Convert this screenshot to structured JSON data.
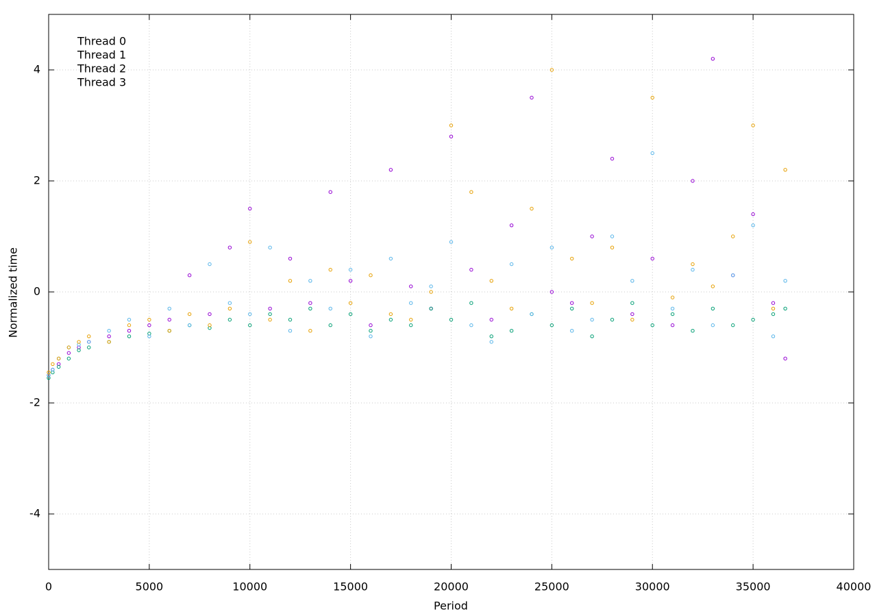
{
  "chart_data": {
    "type": "scatter",
    "xlabel": "Period",
    "ylabel": "Normalized time",
    "x": [
      0,
      200,
      500,
      1000,
      1500,
      2000,
      3000,
      4000,
      5000,
      6000,
      7000,
      8000,
      9000,
      10000,
      11000,
      12000,
      13000,
      14000,
      15000,
      16000,
      17000,
      18000,
      19000,
      20000,
      21000,
      22000,
      23000,
      24000,
      25000,
      26000,
      27000,
      28000,
      29000,
      30000,
      31000,
      32000,
      33000,
      34000,
      35000,
      36000,
      36600
    ],
    "series": [
      {
        "name": "Thread 0",
        "color": "#9400d3",
        "values": [
          -1.5,
          -1.4,
          -1.3,
          -1.1,
          -1.0,
          -0.9,
          -0.8,
          -0.7,
          -0.6,
          -0.5,
          0.3,
          -0.4,
          0.8,
          1.5,
          -0.3,
          0.6,
          -0.2,
          1.8,
          0.2,
          -0.6,
          2.2,
          0.1,
          -0.3,
          2.8,
          0.4,
          -0.5,
          1.2,
          3.5,
          0.0,
          -0.2,
          1.0,
          2.4,
          -0.4,
          0.6,
          -0.6,
          2.0,
          4.2,
          0.3,
          1.4,
          -0.2,
          -1.2
        ]
      },
      {
        "name": "Thread 1",
        "color": "#009e73",
        "values": [
          -1.55,
          -1.45,
          -1.35,
          -1.2,
          -1.05,
          -1.0,
          -0.9,
          -0.8,
          -0.75,
          -0.7,
          -0.6,
          -0.65,
          -0.5,
          -0.6,
          -0.4,
          -0.5,
          -0.3,
          -0.6,
          -0.4,
          -0.7,
          -0.5,
          -0.6,
          -0.3,
          -0.5,
          -0.2,
          -0.8,
          -0.7,
          -0.4,
          -0.6,
          -0.3,
          -0.8,
          -0.5,
          -0.2,
          -0.6,
          -0.4,
          -0.7,
          -0.3,
          -0.6,
          -0.5,
          -0.4,
          -0.3
        ]
      },
      {
        "name": "Thread 2",
        "color": "#56b4e9",
        "values": [
          -1.5,
          -1.4,
          -1.2,
          -1.0,
          -0.95,
          -0.9,
          -0.7,
          -0.5,
          -0.8,
          -0.3,
          -0.6,
          0.5,
          -0.2,
          -0.4,
          0.8,
          -0.7,
          0.2,
          -0.3,
          0.4,
          -0.8,
          0.6,
          -0.2,
          0.1,
          0.9,
          -0.6,
          -0.9,
          0.5,
          -0.4,
          0.8,
          -0.7,
          -0.5,
          1.0,
          0.2,
          2.5,
          -0.3,
          0.4,
          -0.6,
          0.3,
          1.2,
          -0.8,
          0.2
        ]
      },
      {
        "name": "Thread 3",
        "color": "#e69f00",
        "values": [
          -1.45,
          -1.3,
          -1.2,
          -1.0,
          -0.9,
          -0.8,
          -0.9,
          -0.6,
          -0.5,
          -0.7,
          -0.4,
          -0.6,
          -0.3,
          0.9,
          -0.5,
          0.2,
          -0.7,
          0.4,
          -0.2,
          0.3,
          -0.4,
          -0.5,
          0.0,
          3.0,
          1.8,
          0.2,
          -0.3,
          1.5,
          4.0,
          0.6,
          -0.2,
          0.8,
          -0.5,
          3.5,
          -0.1,
          0.5,
          0.1,
          1.0,
          3.0,
          -0.3,
          2.2
        ]
      }
    ],
    "xlim": [
      0,
      40000
    ],
    "xticks": [
      0,
      5000,
      10000,
      15000,
      20000,
      25000,
      30000,
      35000,
      40000
    ],
    "ylim": [
      -5,
      5
    ],
    "yticks": [
      -4,
      -2,
      0,
      2,
      4
    ],
    "grid": true,
    "legend": "upper left"
  }
}
